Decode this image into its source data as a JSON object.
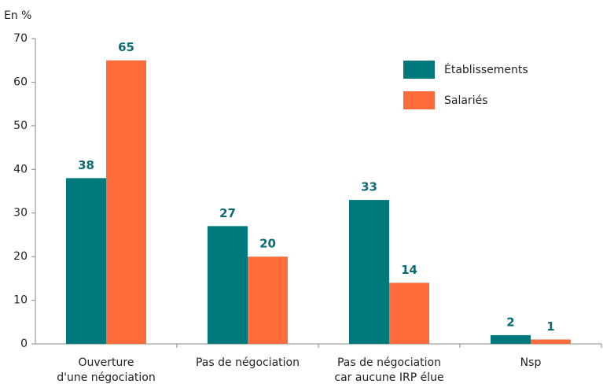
{
  "chart_data": {
    "type": "bar",
    "axis_label": "En %",
    "categories": [
      "Ouverture\nd'une négociation",
      "Pas de négociation",
      "Pas de négociation\ncar aucune IRP élue",
      "Nsp"
    ],
    "series": [
      {
        "name": "Établissements",
        "color": "#00797d",
        "values": [
          38,
          27,
          33,
          2
        ]
      },
      {
        "name": "Salariés",
        "color": "#ff6b3a",
        "values": [
          65,
          20,
          14,
          1
        ]
      }
    ],
    "ylim": [
      0,
      70
    ],
    "yticks": [
      0,
      10,
      20,
      30,
      40,
      50,
      60,
      70
    ],
    "grid": false,
    "legend": "top-right"
  }
}
